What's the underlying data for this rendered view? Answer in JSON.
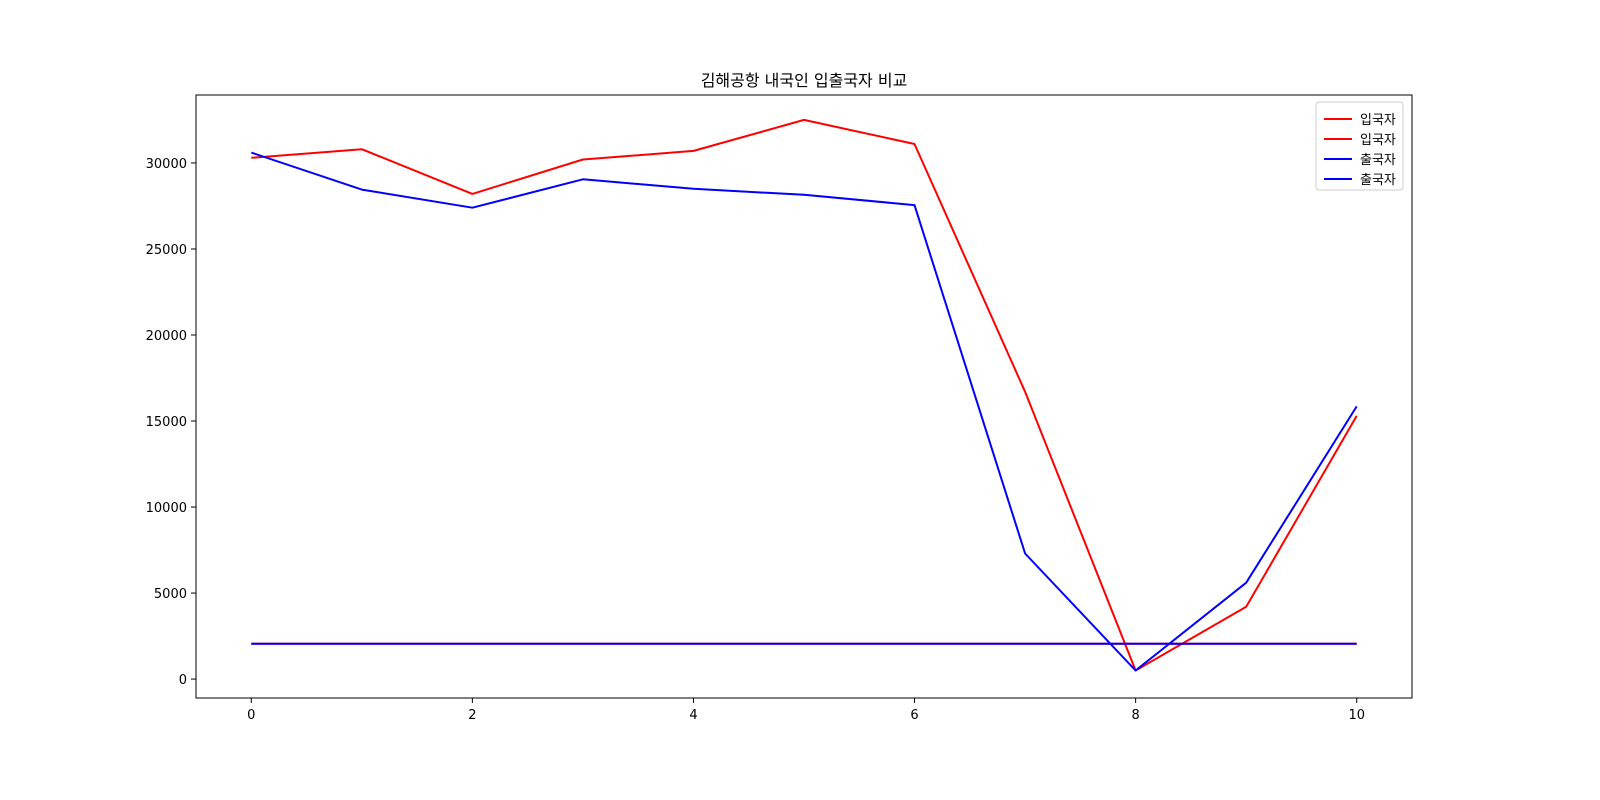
{
  "chart_data": {
    "type": "line",
    "title": "김해공항 내국인 입출국자 비교",
    "xlabel": "",
    "ylabel": "",
    "xlim": [
      -0.5,
      10.5
    ],
    "ylim": [
      -1100,
      33950
    ],
    "xticks": [
      0,
      2,
      4,
      6,
      8,
      10
    ],
    "yticks": [
      0,
      5000,
      10000,
      15000,
      20000,
      25000,
      30000
    ],
    "grid": false,
    "legend_position": "top-right",
    "x": [
      0,
      1,
      2,
      3,
      4,
      5,
      6,
      7,
      8,
      9,
      10
    ],
    "series": [
      {
        "name": "입국자",
        "color": "#ff0000",
        "values": [
          30300,
          30800,
          28200,
          30200,
          30700,
          32500,
          31100,
          16700,
          500,
          4200,
          15300
        ]
      },
      {
        "name": "입국자",
        "color": "#ff0000",
        "values": [
          2050,
          2050,
          2050,
          2050,
          2050,
          2050,
          2050,
          2050,
          2050,
          2050,
          2050
        ]
      },
      {
        "name": "출국자",
        "color": "#0000ff",
        "values": [
          30600,
          28450,
          27400,
          29050,
          28500,
          28150,
          27550,
          7300,
          500,
          5600,
          15850
        ]
      },
      {
        "name": "출국자",
        "color": "#0000ff",
        "values": [
          2050,
          2050,
          2050,
          2050,
          2050,
          2050,
          2050,
          2050,
          2050,
          2050,
          2050
        ]
      }
    ]
  }
}
